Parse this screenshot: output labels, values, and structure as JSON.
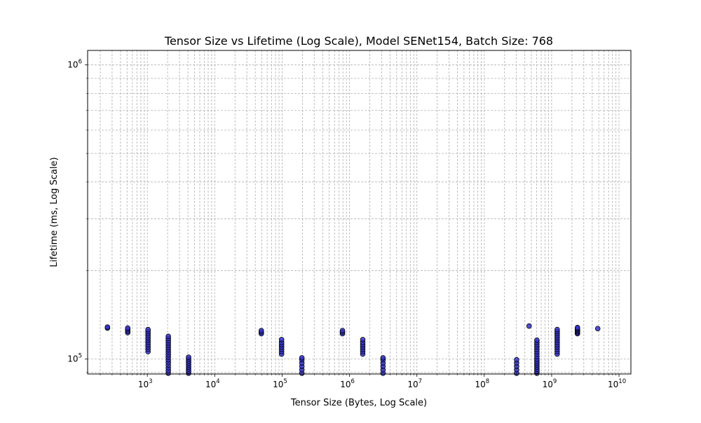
{
  "chart_data": {
    "type": "scatter",
    "title": "Tensor Size vs Lifetime (Log Scale), Model SENet154, Batch Size: 768",
    "xlabel": "Tensor Size (Bytes, Log Scale)",
    "ylabel": "Lifetime (ms, Log Scale)",
    "xscale": "log",
    "yscale": "log",
    "xlim": [
      130,
      15000000000
    ],
    "ylim": [
      89000,
      1120000
    ],
    "grid": true,
    "x_ticks": [
      {
        "value": 1000,
        "base": "10",
        "exp": "3"
      },
      {
        "value": 10000,
        "base": "10",
        "exp": "4"
      },
      {
        "value": 100000,
        "base": "10",
        "exp": "5"
      },
      {
        "value": 1000000,
        "base": "10",
        "exp": "6"
      },
      {
        "value": 10000000,
        "base": "10",
        "exp": "7"
      },
      {
        "value": 100000000,
        "base": "10",
        "exp": "8"
      },
      {
        "value": 1000000000,
        "base": "10",
        "exp": "9"
      },
      {
        "value": 10000000000,
        "base": "10",
        "exp": "10"
      }
    ],
    "y_ticks": [
      {
        "value": 100000,
        "base": "10",
        "exp": "5"
      },
      {
        "value": 1000000,
        "base": "10",
        "exp": "6"
      }
    ],
    "marker_color": "#3333cc",
    "marker_edge": "#000000",
    "clusters": [
      {
        "x": 256,
        "y": [
          127500,
          128500
        ]
      },
      {
        "x": 512,
        "y": [
          123000,
          124500,
          126000,
          127500
        ]
      },
      {
        "x": 1024,
        "y": [
          106000,
          108000,
          110000,
          112000,
          114000,
          116000,
          118000,
          120000,
          122000,
          124000,
          126000
        ]
      },
      {
        "x": 2048,
        "y": [
          89500,
          91500,
          93500,
          95500,
          97500,
          99500,
          101500,
          103500,
          105500,
          107500,
          109500,
          111500,
          113500,
          115500,
          117500,
          119500
        ]
      },
      {
        "x": 4096,
        "y": [
          89500,
          91000,
          92500,
          94000,
          95500,
          97000,
          98500,
          100000,
          101500
        ]
      },
      {
        "x": 49152,
        "y": [
          122000,
          123500,
          125000
        ]
      },
      {
        "x": 98304,
        "y": [
          104000,
          106000,
          108000,
          110000,
          112000,
          114000,
          116500
        ]
      },
      {
        "x": 196608,
        "y": [
          89500,
          92000,
          94500,
          97000,
          99500,
          101000
        ]
      },
      {
        "x": 786432,
        "y": [
          122000,
          123500,
          125000
        ]
      },
      {
        "x": 1572864,
        "y": [
          104000,
          106000,
          108000,
          110000,
          112000,
          114000,
          116500
        ]
      },
      {
        "x": 3145728,
        "y": [
          89500,
          92000,
          94500,
          97000,
          99500,
          101000
        ]
      },
      {
        "x": 301989888,
        "y": [
          89500,
          92000,
          94500,
          97000,
          99500
        ]
      },
      {
        "x": 462422016,
        "y": [
          129500
        ]
      },
      {
        "x": 603979776,
        "y": [
          89500,
          91000,
          92500,
          94000,
          95500,
          97000,
          98500,
          100000,
          102000,
          104000,
          106000,
          108000,
          110000,
          112000,
          114000,
          116000
        ]
      },
      {
        "x": 1207959552,
        "y": [
          104000,
          106000,
          108000,
          110000,
          112000,
          114000,
          116000,
          118000,
          120000,
          122000,
          124000,
          126000
        ]
      },
      {
        "x": 2415919104,
        "y": [
          122000,
          123000,
          124000,
          125000,
          126000,
          127000,
          128000
        ]
      },
      {
        "x": 4831838208,
        "y": [
          127000
        ]
      }
    ]
  }
}
